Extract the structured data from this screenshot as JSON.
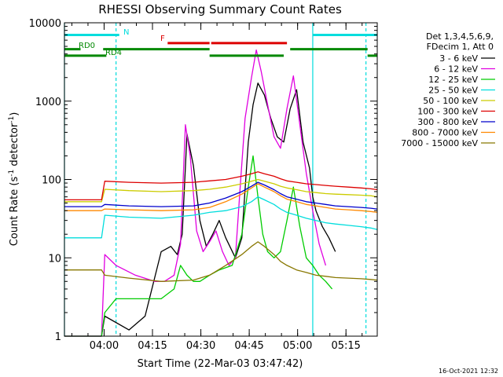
{
  "chart_data": {
    "type": "line",
    "title": "RHESSI Observing Summary Count Rates",
    "xlabel": "Start Time (22-Mar-03 03:47:42)",
    "ylabel_main": "Count Rate (s",
    "ylabel_sup1": "-1",
    "ylabel_mid": " detector",
    "ylabel_sup2": "-1",
    "ylabel_end": ")",
    "x_unit": "minutes since 03:47:42",
    "xlim": [
      0,
      97
    ],
    "ylim": [
      1,
      10000
    ],
    "yscale": "log",
    "x_ticks": [
      {
        "x": 12.3,
        "label": "04:00"
      },
      {
        "x": 27.3,
        "label": "04:15"
      },
      {
        "x": 42.3,
        "label": "04:30"
      },
      {
        "x": 57.3,
        "label": "04:45"
      },
      {
        "x": 72.3,
        "label": "05:00"
      },
      {
        "x": 87.3,
        "label": "05:15"
      }
    ],
    "y_ticks": [
      {
        "y": 1,
        "label": "1"
      },
      {
        "y": 10,
        "label": "10"
      },
      {
        "y": 100,
        "label": "100"
      },
      {
        "y": 1000,
        "label": "1000"
      },
      {
        "y": 10000,
        "label": "10000"
      }
    ],
    "legend": {
      "placement": "right",
      "header": [
        "Det 1,3,4,5,6,9,",
        "FDecim 1, Att 0"
      ]
    },
    "series": [
      {
        "name": "3 - 6 keV",
        "color": "#000000",
        "x": [
          0,
          11.5,
          12.5,
          20,
          25,
          30,
          33,
          35,
          36.5,
          38,
          40,
          42,
          44,
          46,
          48,
          50,
          53,
          55,
          57,
          58.5,
          60,
          62,
          64,
          66,
          68,
          70,
          72,
          74,
          76,
          77,
          78,
          80,
          82,
          84
        ],
        "y": [
          1,
          1,
          1.8,
          1.2,
          1.8,
          12,
          14,
          11,
          20,
          380,
          150,
          30,
          14,
          20,
          30,
          18,
          10,
          18,
          300,
          900,
          1700,
          1200,
          600,
          350,
          300,
          800,
          1400,
          300,
          140,
          60,
          40,
          25,
          18,
          12
        ]
      },
      {
        "name": "6 - 12 keV",
        "color": "#e000e0",
        "x": [
          0,
          11.5,
          12.5,
          16,
          22,
          28,
          31,
          34,
          36,
          37.5,
          39,
          41,
          43,
          45,
          47,
          49,
          51,
          53,
          54.5,
          56,
          58,
          59.5,
          61,
          63,
          65,
          67,
          69,
          71,
          73,
          75,
          77,
          79,
          81
        ],
        "y": [
          1,
          1,
          11,
          8,
          6,
          5,
          5,
          6,
          15,
          500,
          200,
          22,
          12,
          16,
          22,
          12,
          8,
          10,
          80,
          600,
          2000,
          4500,
          2400,
          900,
          350,
          250,
          800,
          2100,
          500,
          120,
          40,
          15,
          8
        ]
      },
      {
        "name": "12 - 25 keV",
        "color": "#00cc00",
        "x": [
          0,
          2,
          5,
          8,
          11.5,
          12.5,
          16,
          20,
          25,
          30,
          34,
          36,
          38,
          40,
          42,
          45,
          48,
          52,
          55,
          57,
          58.5,
          60,
          61.5,
          63,
          65,
          67,
          69,
          71,
          73,
          75,
          77,
          79,
          81,
          83
        ],
        "y": [
          1,
          1,
          1,
          1,
          1,
          2,
          3,
          3,
          3,
          3,
          4,
          8,
          6,
          5,
          5,
          6,
          7,
          8,
          20,
          80,
          200,
          60,
          20,
          12,
          10,
          12,
          30,
          80,
          25,
          10,
          8,
          6,
          5,
          4
        ]
      },
      {
        "name": "25 - 50 keV",
        "color": "#00dddd",
        "x": [
          0,
          11.5,
          12.5,
          20,
          30,
          40,
          45,
          50,
          55,
          58,
          60,
          62,
          65,
          67,
          69,
          72,
          75,
          78,
          81,
          84,
          88,
          92,
          95,
          97
        ],
        "y": [
          18,
          18,
          35,
          33,
          32,
          35,
          38,
          40,
          45,
          52,
          60,
          55,
          48,
          42,
          38,
          35,
          32,
          30,
          28,
          27,
          26,
          25,
          24,
          23
        ]
      },
      {
        "name": "50 - 100 keV",
        "color": "#cccc00",
        "x": [
          0,
          11.5,
          12.5,
          20,
          30,
          40,
          45,
          50,
          55,
          58,
          60,
          62,
          65,
          67,
          69,
          72,
          75,
          78,
          81,
          84,
          88,
          92,
          95,
          97
        ],
        "y": [
          52,
          52,
          75,
          72,
          70,
          72,
          75,
          80,
          88,
          95,
          100,
          95,
          88,
          82,
          78,
          74,
          70,
          68,
          66,
          65,
          64,
          63,
          62,
          60
        ]
      },
      {
        "name": "100 - 300 keV",
        "color": "#dd0000",
        "x": [
          0,
          11.5,
          12.5,
          20,
          30,
          40,
          45,
          50,
          55,
          58,
          60,
          62,
          65,
          67,
          69,
          72,
          75,
          78,
          81,
          84,
          88,
          92,
          95,
          97
        ],
        "y": [
          55,
          55,
          95,
          92,
          90,
          92,
          96,
          100,
          110,
          118,
          125,
          118,
          110,
          102,
          96,
          92,
          88,
          86,
          84,
          82,
          80,
          78,
          76,
          74
        ]
      },
      {
        "name": "300 - 800 keV",
        "color": "#0000cc",
        "x": [
          0,
          11.5,
          12.5,
          20,
          30,
          40,
          45,
          50,
          55,
          58,
          60,
          62,
          65,
          67,
          69,
          72,
          75,
          78,
          81,
          84,
          88,
          92,
          95,
          97
        ],
        "y": [
          45,
          45,
          48,
          46,
          45,
          46,
          50,
          58,
          70,
          82,
          92,
          85,
          74,
          66,
          60,
          56,
          52,
          50,
          48,
          46,
          45,
          44,
          43,
          42
        ]
      },
      {
        "name": "800 - 7000 keV",
        "color": "#ff8800",
        "x": [
          0,
          11.5,
          12.5,
          20,
          30,
          40,
          45,
          50,
          55,
          58,
          60,
          62,
          65,
          67,
          69,
          72,
          75,
          78,
          81,
          84,
          88,
          92,
          95,
          97
        ],
        "y": [
          40,
          40,
          42,
          41,
          40,
          41,
          44,
          52,
          65,
          78,
          88,
          80,
          70,
          62,
          56,
          52,
          48,
          46,
          44,
          42,
          41,
          40,
          39,
          38
        ]
      },
      {
        "name": "7000 - 15000 keV",
        "color": "#887700",
        "x": [
          0,
          11.5,
          12.5,
          20,
          30,
          40,
          45,
          50,
          55,
          58,
          60,
          62,
          65,
          67,
          69,
          72,
          75,
          78,
          81,
          84,
          88,
          92,
          95,
          97
        ],
        "y": [
          7,
          7,
          6,
          5.5,
          5,
          5.2,
          6,
          8,
          11,
          14,
          16,
          14,
          11,
          9,
          8,
          7,
          6.5,
          6,
          5.8,
          5.6,
          5.5,
          5.4,
          5.3,
          5.2
        ]
      }
    ],
    "flags": [
      {
        "label": "N",
        "color": "#00dddd",
        "y": 7000,
        "segments": [
          [
            0,
            17
          ],
          [
            77,
            97
          ]
        ]
      },
      {
        "label": "F",
        "color": "#dd0000",
        "y": 5500,
        "segments": [
          [
            32,
            45
          ],
          [
            45.5,
            69
          ]
        ]
      },
      {
        "label": "RD0",
        "color": "#008800",
        "y": 4600,
        "segments": [
          [
            0,
            5
          ],
          [
            12,
            45
          ],
          [
            70,
            94
          ]
        ]
      },
      {
        "label": "RD4",
        "color": "#008800",
        "y": 3800,
        "segments": [
          [
            0,
            13
          ],
          [
            45,
            68
          ],
          [
            94,
            97
          ]
        ]
      }
    ],
    "markers": [
      {
        "x": 0,
        "color": "#00dddd",
        "style": "solid"
      },
      {
        "x": 16,
        "color": "#00dddd",
        "style": "dashed"
      },
      {
        "x": 77,
        "color": "#00dddd",
        "style": "solid"
      },
      {
        "x": 93.5,
        "color": "#00dddd",
        "style": "dashed"
      }
    ]
  },
  "footer": {
    "timestamp": "16-Oct-2021 12:32"
  }
}
